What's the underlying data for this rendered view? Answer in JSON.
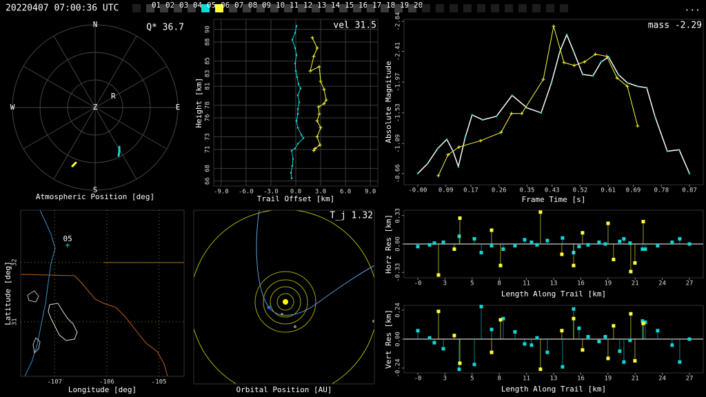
{
  "header": {
    "timestamp": "20220407 07:00:36 UTC",
    "stations": [
      "01",
      "02",
      "03",
      "04",
      "05",
      "06",
      "07",
      "08",
      "09",
      "10",
      "11",
      "12",
      "13",
      "14",
      "15",
      "16",
      "17",
      "18",
      "19",
      "20"
    ],
    "highlights": [
      {
        "station": "05",
        "color": "#11d6d6"
      },
      {
        "station": "06",
        "color": "#ffff3c"
      }
    ],
    "menu": "..."
  },
  "chart_data": [
    {
      "type": "polar",
      "annotation": "Q* 36.7",
      "xlabel": "Atmospheric Position [deg]",
      "directions": [
        "N",
        "E",
        "S",
        "W"
      ],
      "zenith_label": "Z",
      "rlim": [
        0,
        90
      ],
      "rticks": [
        30,
        60,
        90
      ],
      "series": [
        {
          "color": "#11d6d6",
          "azimuth": [
            148.4,
            151.0,
            154.1
          ],
          "values": [
            50.2,
            54.3,
            58.4
          ]
        },
        {
          "color": "#ffff3c",
          "azimuth": [
            199.3,
            201.2
          ],
          "values": [
            63.6,
            68.4
          ]
        }
      ],
      "marker": {
        "label": "R",
        "azimuth": 59,
        "zenith": 23
      }
    },
    {
      "type": "line",
      "annotation": "vel 31.5",
      "xlabel": "Trail Offset [km]",
      "ylabel": "Height [km]",
      "xlim": [
        -9.9,
        9.9
      ],
      "xticks": [
        {
          "value": -9,
          "label": "-9.0"
        },
        {
          "value": -6,
          "label": "-6.0"
        },
        {
          "value": -3,
          "label": "-3.0"
        },
        {
          "value": 0,
          "label": "0.0"
        },
        {
          "value": 3,
          "label": "3.0"
        },
        {
          "value": 6,
          "label": "6.0"
        },
        {
          "value": 9,
          "label": "9.0"
        }
      ],
      "ylim": [
        65.2,
        91.6
      ],
      "yticks": [
        66,
        68,
        71,
        73,
        76,
        78,
        81,
        83,
        85,
        88,
        90
      ],
      "grid": true,
      "grid_color": "#3c3c3c",
      "series": [
        {
          "color": "#11d6d6",
          "marker": "dot",
          "x": [
            0.08,
            -0.08,
            -0.42,
            -0.08,
            0.08,
            -0.08,
            0,
            0.17,
            0.33,
            0.58,
            0.25,
            0.42,
            0.25,
            0.25,
            0.08,
            0.25,
            0.67,
            0.92,
            0.25,
            -0.08,
            -0.5,
            -0.33,
            -0.42,
            -0.58,
            -0.5
          ],
          "values": [
            90.55,
            89.45,
            88.36,
            87.04,
            85.95,
            84.63,
            83.42,
            82.44,
            81.34,
            80.68,
            79.59,
            78.49,
            77.4,
            76.63,
            75.53,
            74.44,
            73.34,
            72.79,
            71.92,
            71.15,
            70.82,
            69.51,
            68.41,
            67.32,
            66.44
          ]
        },
        {
          "color": "#ffff3c",
          "marker": "plus",
          "x": [
            2.0,
            2.58,
            2.17,
            1.75,
            2.83,
            3.0,
            3.42,
            3.67,
            3.42,
            2.75,
            2.83,
            2.58,
            3.0,
            2.58,
            2.92,
            2.33,
            2.17
          ],
          "values": [
            88.68,
            87.04,
            85.73,
            83.42,
            84.08,
            81.78,
            80.47,
            78.82,
            78.27,
            77.73,
            76.63,
            75.53,
            74.44,
            73.01,
            71.7,
            71.15,
            70.82
          ]
        }
      ]
    },
    {
      "type": "line",
      "annotation": "mass -2.29",
      "xlabel": "Frame Time [s]",
      "ylabel": "Absolute Magnitude",
      "xlim": [
        -0.044,
        0.914
      ],
      "xticks": [
        {
          "value": 0,
          "label": "-0.00"
        },
        0.09,
        0.17,
        0.26,
        0.35,
        0.43,
        0.52,
        0.61,
        0.69,
        0.78,
        0.87
      ],
      "ylim": [
        -0.5,
        -2.87
      ],
      "yticks": [
        -0.66,
        -1.09,
        -1.53,
        -1.97,
        -2.41,
        -2.84
      ],
      "series": [
        {
          "color": "#11d6d6",
          "line_color": "#ffffff",
          "marker": "dot",
          "x": [
            0,
            0.031,
            0.064,
            0.093,
            0.113,
            0.13,
            0.152,
            0.174,
            0.208,
            0.252,
            0.302,
            0.35,
            0.395,
            0.428,
            0.455,
            0.477,
            0.499,
            0.528,
            0.561,
            0.587,
            0.611,
            0.642,
            0.671,
            0.704,
            0.733,
            0.76,
            0.799,
            0.837,
            0.87
          ],
          "values": [
            -0.66,
            -0.8,
            -1.02,
            -1.15,
            -0.98,
            -0.76,
            -1.18,
            -1.5,
            -1.43,
            -1.48,
            -1.78,
            -1.6,
            -1.53,
            -1.96,
            -2.41,
            -2.65,
            -2.41,
            -2.08,
            -2.06,
            -2.26,
            -2.33,
            -2.08,
            -1.96,
            -1.91,
            -1.89,
            -1.47,
            -0.98,
            -1.0,
            -0.66
          ]
        },
        {
          "color": "#ffff3c",
          "marker": "plus",
          "x": [
            0.066,
            0.097,
            0.132,
            0.201,
            0.267,
            0.3,
            0.333,
            0.402,
            0.435,
            0.468,
            0.501,
            0.534,
            0.569,
            0.605,
            0.638,
            0.671,
            0.704
          ],
          "values": [
            -0.63,
            -0.93,
            -1.04,
            -1.13,
            -1.25,
            -1.52,
            -1.52,
            -2.01,
            -2.77,
            -2.25,
            -2.21,
            -2.26,
            -2.37,
            -2.34,
            -2.03,
            -1.91,
            -1.34
          ]
        }
      ]
    },
    {
      "type": "map",
      "xlabel": "Longitude [deg]",
      "ylabel": "Latitude [deg]",
      "xlim": [
        -107.65,
        -104.52
      ],
      "xticks": [
        -107,
        -106,
        -105
      ],
      "ylim": [
        30.08,
        32.88
      ],
      "yticks": [
        31,
        32
      ],
      "grid": true,
      "grid_color": "#8a8a00",
      "grid_dash": "1,4",
      "station": {
        "label": "05",
        "color": "#11d6d6",
        "lon": -106.75,
        "lat": 32.29
      }
    },
    {
      "type": "orbit",
      "annotation": "T_j 1.32",
      "xlabel": "Orbital Position [AU]"
    },
    {
      "type": "stem",
      "xlabel": "Length Along Trail [km]",
      "ylabel": "Horz Res [km]",
      "xlim": [
        -1.36,
        28.16
      ],
      "xticks": [
        {
          "value": 0,
          "label": "-0"
        },
        {
          "value": 2.68,
          "label": "3"
        },
        {
          "value": 5.36,
          "label": "5"
        },
        {
          "value": 8.04,
          "label": "8"
        },
        {
          "value": 10.72,
          "label": "11"
        },
        {
          "value": 13.4,
          "label": "13"
        },
        {
          "value": 16.08,
          "label": "16"
        },
        {
          "value": 18.76,
          "label": "19"
        },
        {
          "value": 21.44,
          "label": "21"
        },
        {
          "value": 24.12,
          "label": "24"
        },
        {
          "value": 26.8,
          "label": "27"
        }
      ],
      "ylim": [
        -0.392,
        0.392
      ],
      "yticks": [
        -0.33,
        {
          "value": 0,
          "label": "0.00"
        },
        0.33
      ],
      "zero_line": true,
      "series": [
        {
          "color": "#11d6d6",
          "x": [
            0,
            1.16,
            1.63,
            2.52,
            4.08,
            5.58,
            6.26,
            7.28,
            8.43,
            9.59,
            10.54,
            11.22,
            11.76,
            12.78,
            14.28,
            15.37,
            15.91,
            16.8,
            17.88,
            18.5,
            19.92,
            20.33,
            20.94,
            22.17,
            22.44,
            23.66,
            25.09,
            25.84,
            26.8
          ],
          "values": [
            -0.03,
            -0.01,
            0.01,
            0.02,
            0.09,
            0.06,
            -0.1,
            -0.02,
            -0.06,
            -0.02,
            0.05,
            0.02,
            -0.01,
            0.04,
            0.07,
            -0.1,
            -0.03,
            -0.01,
            0.02,
            0.0,
            0.03,
            0.06,
            0.01,
            -0.06,
            -0.06,
            -0.02,
            0.02,
            0.06,
            0.0
          ]
        },
        {
          "color": "#ffff3c",
          "x": [
            2.04,
            3.6,
            4.15,
            7.28,
            8.16,
            12.1,
            14.21,
            15.37,
            16.25,
            18.77,
            19.31,
            21.01,
            21.42,
            22.24
          ],
          "values": [
            -0.36,
            -0.06,
            0.3,
            0.16,
            -0.25,
            0.37,
            -0.12,
            -0.25,
            0.13,
            0.24,
            -0.18,
            -0.32,
            -0.22,
            0.26
          ]
        }
      ]
    },
    {
      "type": "stem",
      "xlabel": "Length Along Trail [km]",
      "ylabel": "Vert Res [km]",
      "xlim": [
        -1.36,
        28.16
      ],
      "xticks": [
        {
          "value": 0,
          "label": "-0"
        },
        {
          "value": 2.68,
          "label": "3"
        },
        {
          "value": 5.36,
          "label": "5"
        },
        {
          "value": 8.04,
          "label": "8"
        },
        {
          "value": 10.72,
          "label": "11"
        },
        {
          "value": 13.4,
          "label": "13"
        },
        {
          "value": 16.08,
          "label": "16"
        },
        {
          "value": 18.76,
          "label": "19"
        },
        {
          "value": 21.44,
          "label": "21"
        },
        {
          "value": 24.12,
          "label": "24"
        },
        {
          "value": 26.8,
          "label": "27"
        }
      ],
      "ylim": [
        -0.28,
        0.28
      ],
      "yticks": [
        -0.24,
        {
          "value": 0,
          "label": "0.00"
        },
        0.24
      ],
      "zero_line": true,
      "series": [
        {
          "color": "#11d6d6",
          "x": [
            0,
            1.16,
            1.63,
            2.52,
            4.08,
            5.58,
            6.26,
            7.28,
            8.43,
            9.59,
            10.54,
            11.22,
            11.76,
            12.78,
            14.28,
            15.37,
            15.91,
            16.8,
            17.88,
            18.5,
            19.92,
            20.33,
            20.94,
            22.17,
            22.44,
            23.66,
            25.09,
            25.84,
            26.8
          ],
          "values": [
            0.07,
            0.01,
            -0.03,
            -0.08,
            -0.25,
            -0.21,
            0.27,
            0.08,
            0.17,
            0.06,
            -0.04,
            -0.05,
            0.01,
            -0.11,
            -0.23,
            0.25,
            0.09,
            0.02,
            -0.02,
            0.02,
            -0.1,
            -0.19,
            -0.01,
            0.15,
            0.14,
            0.07,
            -0.05,
            -0.19,
            0.0
          ]
        },
        {
          "color": "#ffff3c",
          "x": [
            2.04,
            3.6,
            4.15,
            7.28,
            8.16,
            12.1,
            14.21,
            15.37,
            16.25,
            18.77,
            19.31,
            21.01,
            21.42,
            22.24
          ],
          "values": [
            0.23,
            0.03,
            -0.2,
            -0.11,
            0.16,
            -0.25,
            0.07,
            0.17,
            -0.09,
            -0.16,
            0.11,
            0.21,
            -0.18,
            0.13
          ]
        }
      ]
    }
  ]
}
